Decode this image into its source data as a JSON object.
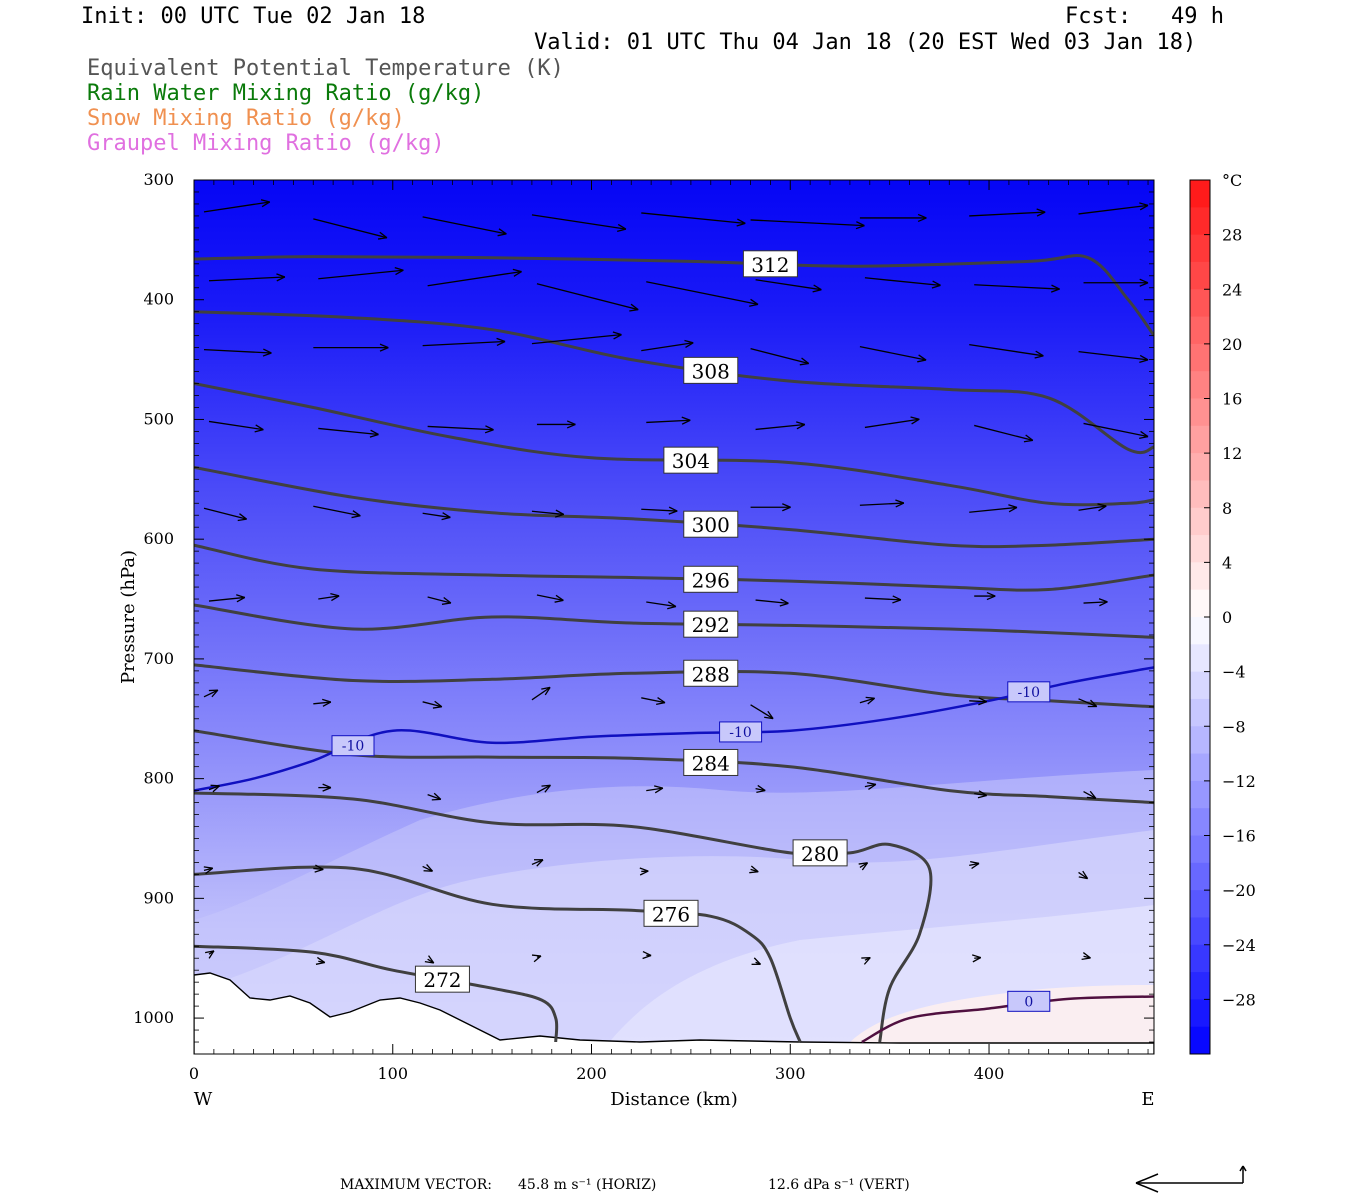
{
  "header": {
    "init": "Init: 00 UTC Tue 02 Jan 18",
    "fcst": "Fcst:   49 h",
    "valid": "Valid: 01 UTC Thu 04 Jan 18 (20 EST Wed 03 Jan 18)",
    "fields": [
      {
        "label": "Equivalent Potential Temperature (K)",
        "color": "#555555"
      },
      {
        "label": "Rain Water Mixing Ratio (g/kg)",
        "color": "#0a7a0a"
      },
      {
        "label": "Snow Mixing Ratio (g/kg)",
        "color": "#f09050"
      },
      {
        "label": "Graupel Mixing Ratio (g/kg)",
        "color": "#e070e0"
      }
    ]
  },
  "footer": {
    "max_vector_label": "MAXIMUM VECTOR:",
    "horiz": "45.8 m s⁻¹ (HORIZ)",
    "vert": "12.6 dPa s⁻¹ (VERT)"
  },
  "chart_data": {
    "type": "heatmap",
    "xlabel": "Distance (km)",
    "ylabel": "Pressure (hPa)",
    "xlim": [
      0,
      483
    ],
    "ylim": [
      1030,
      300
    ],
    "x_ticks": [
      0,
      100,
      200,
      300,
      400
    ],
    "y_ticks": [
      300,
      400,
      500,
      600,
      700,
      800,
      900,
      1000
    ],
    "x_end_labels": {
      "left": "W",
      "right": "E"
    },
    "colorbar": {
      "unit": "°C",
      "ticks": [
        28,
        24,
        20,
        16,
        12,
        8,
        4,
        0,
        -4,
        -8,
        -12,
        -16,
        -20,
        -24,
        -28
      ],
      "range": [
        -32,
        32
      ]
    },
    "theta_e_contours": [
      {
        "value": 312,
        "x": [
          0,
          60,
          150,
          250,
          330,
          420,
          450,
          470,
          483
        ],
        "p": [
          366,
          364,
          365,
          368,
          372,
          368,
          365,
          400,
          430
        ]
      },
      {
        "value": 308,
        "x": [
          0,
          80,
          150,
          220,
          300,
          380,
          430,
          470,
          483
        ],
        "p": [
          410,
          415,
          425,
          450,
          468,
          475,
          482,
          525,
          523
        ]
      },
      {
        "value": 304,
        "x": [
          0,
          60,
          130,
          200,
          300,
          380,
          430,
          470,
          483
        ],
        "p": [
          470,
          490,
          515,
          532,
          536,
          555,
          570,
          570,
          567
        ]
      },
      {
        "value": 300,
        "x": [
          0,
          80,
          150,
          220,
          300,
          380,
          430,
          483
        ],
        "p": [
          540,
          565,
          578,
          583,
          592,
          605,
          605,
          600
        ]
      },
      {
        "value": 296,
        "x": [
          0,
          60,
          150,
          220,
          300,
          380,
          430,
          483
        ],
        "p": [
          605,
          625,
          630,
          632,
          635,
          640,
          642,
          630
        ]
      },
      {
        "value": 292,
        "x": [
          0,
          80,
          150,
          220,
          300,
          380,
          430,
          483
        ],
        "p": [
          655,
          675,
          665,
          670,
          672,
          675,
          678,
          682
        ]
      },
      {
        "value": 288,
        "x": [
          0,
          80,
          150,
          220,
          300,
          380,
          430,
          483
        ],
        "p": [
          705,
          718,
          717,
          712,
          712,
          730,
          735,
          740
        ]
      },
      {
        "value": 284,
        "x": [
          0,
          80,
          150,
          220,
          300,
          380,
          430,
          483
        ],
        "p": [
          760,
          780,
          782,
          783,
          790,
          810,
          815,
          820
        ]
      },
      {
        "value": 280,
        "x": [
          0,
          80,
          150,
          220,
          300,
          330,
          350,
          370,
          365,
          350,
          345
        ],
        "p": [
          812,
          817,
          837,
          840,
          862,
          862,
          855,
          875,
          930,
          975,
          1020
        ]
      },
      {
        "value": 276,
        "x": [
          0,
          80,
          150,
          220,
          260,
          280,
          290,
          300,
          305
        ],
        "p": [
          880,
          875,
          905,
          910,
          915,
          930,
          950,
          1000,
          1020
        ]
      },
      {
        "value": 272,
        "x": [
          0,
          60,
          100,
          150,
          175,
          182,
          182
        ],
        "p": [
          940,
          945,
          960,
          975,
          985,
          1000,
          1020
        ]
      }
    ],
    "temperature_contours": [
      {
        "value": -10,
        "color": "#1010c0",
        "x": [
          0,
          30,
          60,
          100,
          150,
          200,
          250,
          300,
          350,
          400,
          440,
          483
        ],
        "p": [
          810,
          800,
          785,
          760,
          770,
          765,
          762,
          760,
          750,
          735,
          720,
          707
        ]
      },
      {
        "value": 0,
        "color": "#501040",
        "x": [
          336,
          360,
          400,
          440,
          483
        ],
        "p": [
          1020,
          1000,
          992,
          984,
          982
        ]
      }
    ]
  }
}
